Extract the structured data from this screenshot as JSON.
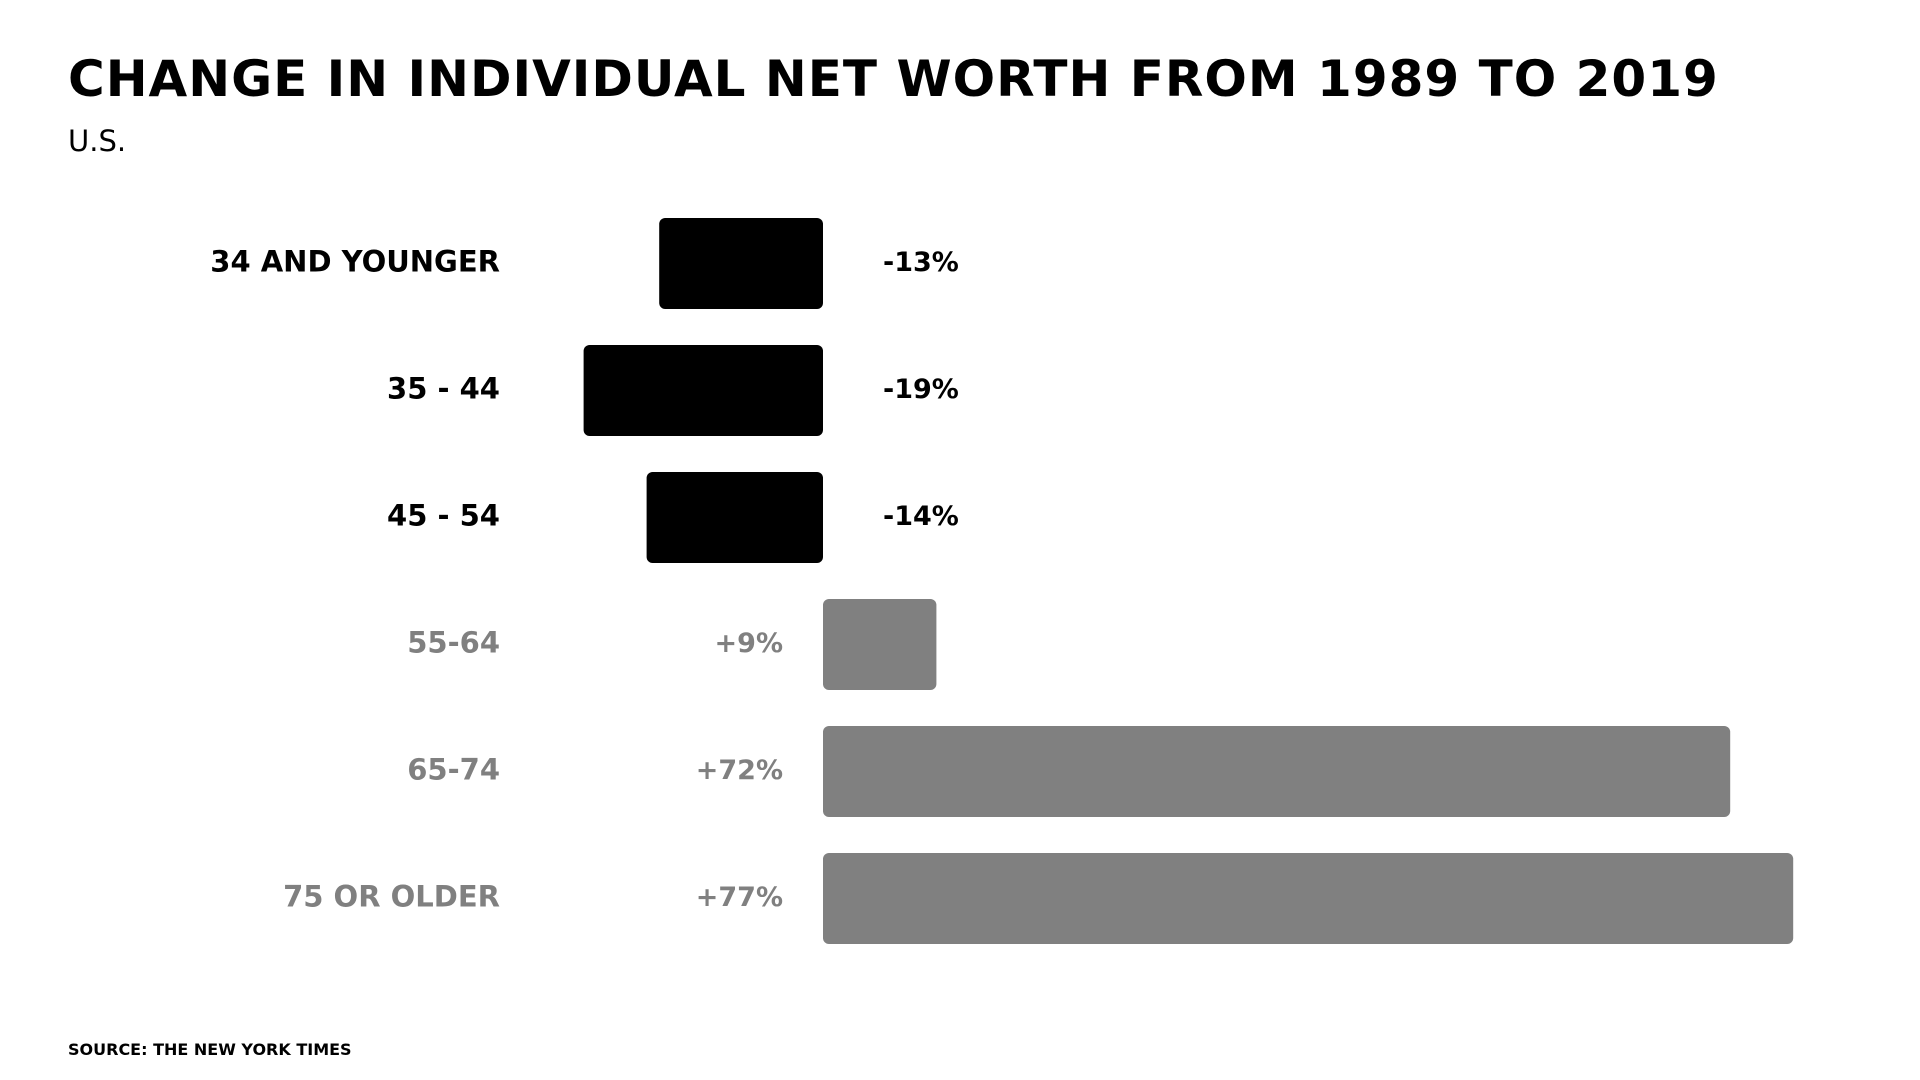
{
  "chart_data": {
    "type": "bar",
    "orientation": "horizontal",
    "title": "CHANGE IN INDIVIDUAL NET WORTH FROM 1989 TO 2019",
    "subtitle": "U.S.",
    "source": "SOURCE: THE NEW YORK TIMES",
    "categories": [
      "34 AND YOUNGER",
      "35 - 44",
      "45 - 54",
      "55-64",
      "65-74",
      "75 OR OLDER"
    ],
    "values": [
      -13,
      -19,
      -14,
      9,
      72,
      77
    ],
    "value_labels": [
      "-13%",
      "-19%",
      "-14%",
      "+9%",
      "+72%",
      "+77%"
    ],
    "xlim": [
      -19,
      77
    ],
    "grid": false,
    "legend": "none",
    "colors": {
      "negative": "#000000",
      "positive": "#808080"
    }
  }
}
